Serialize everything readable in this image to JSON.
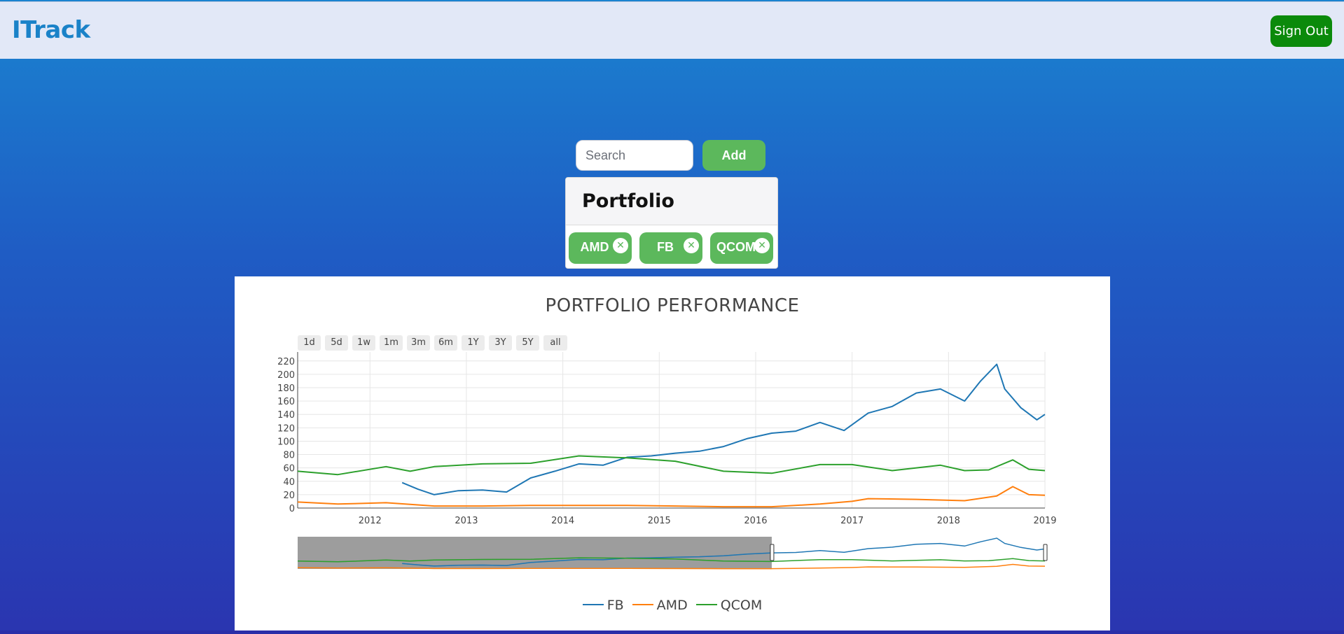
{
  "header": {
    "brand": "ITrack",
    "signout_label": "Sign Out"
  },
  "search": {
    "placeholder": "Search",
    "add_label": "Add"
  },
  "portfolio": {
    "title": "Portfolio",
    "stocks": [
      {
        "symbol": "AMD",
        "remove_icon": "close-circle-icon"
      },
      {
        "symbol": "FB",
        "remove_icon": "close-circle-icon"
      },
      {
        "symbol": "QCOM",
        "remove_icon": "close-circle-icon"
      }
    ]
  },
  "range_buttons": [
    "1d",
    "5d",
    "1w",
    "1m",
    "3m",
    "6m",
    "1Y",
    "3Y",
    "5Y",
    "all"
  ],
  "colors": {
    "FB": "#1f77b4",
    "AMD": "#ff7f0e",
    "QCOM": "#2ca02c",
    "brand": "#1a82c8",
    "signout": "#0b8a0b",
    "accent": "#5cb85c"
  },
  "chart_data": {
    "type": "line",
    "title": "PORTFOLIO PERFORMANCE",
    "xlabel": "",
    "ylabel": "",
    "x_ticks": [
      "2012",
      "2013",
      "2014",
      "2015",
      "2016",
      "2017",
      "2018",
      "2019"
    ],
    "y_ticks": [
      0,
      20,
      40,
      60,
      80,
      100,
      120,
      140,
      160,
      180,
      200,
      220
    ],
    "xlim": [
      "2011-04",
      "2019-01"
    ],
    "ylim": [
      0,
      225
    ],
    "grid": true,
    "legend_placement": "bottom-center",
    "range_slider": true,
    "range_slider_selection": [
      "2011-04",
      "2016-03"
    ],
    "series": [
      {
        "name": "FB",
        "points": [
          [
            "2012-05",
            38
          ],
          [
            "2012-07",
            28
          ],
          [
            "2012-09",
            20
          ],
          [
            "2012-12",
            26
          ],
          [
            "2013-03",
            27
          ],
          [
            "2013-06",
            24
          ],
          [
            "2013-09",
            45
          ],
          [
            "2013-12",
            55
          ],
          [
            "2014-03",
            66
          ],
          [
            "2014-06",
            64
          ],
          [
            "2014-09",
            76
          ],
          [
            "2014-12",
            78
          ],
          [
            "2015-03",
            82
          ],
          [
            "2015-06",
            85
          ],
          [
            "2015-09",
            92
          ],
          [
            "2015-12",
            104
          ],
          [
            "2016-03",
            112
          ],
          [
            "2016-06",
            115
          ],
          [
            "2016-09",
            128
          ],
          [
            "2016-12",
            116
          ],
          [
            "2017-03",
            142
          ],
          [
            "2017-06",
            152
          ],
          [
            "2017-09",
            172
          ],
          [
            "2017-12",
            178
          ],
          [
            "2018-03",
            160
          ],
          [
            "2018-05",
            190
          ],
          [
            "2018-07",
            215
          ],
          [
            "2018-08",
            178
          ],
          [
            "2018-10",
            150
          ],
          [
            "2018-12",
            132
          ],
          [
            "2019-01",
            140
          ]
        ]
      },
      {
        "name": "AMD",
        "points": [
          [
            "2011-04",
            9
          ],
          [
            "2011-09",
            6
          ],
          [
            "2012-03",
            8
          ],
          [
            "2012-09",
            3
          ],
          [
            "2013-03",
            3
          ],
          [
            "2013-09",
            4
          ],
          [
            "2014-03",
            4
          ],
          [
            "2014-09",
            4
          ],
          [
            "2015-03",
            3
          ],
          [
            "2015-09",
            2
          ],
          [
            "2016-03",
            2
          ],
          [
            "2016-09",
            6
          ],
          [
            "2017-01",
            10
          ],
          [
            "2017-03",
            14
          ],
          [
            "2017-09",
            13
          ],
          [
            "2018-03",
            11
          ],
          [
            "2018-07",
            18
          ],
          [
            "2018-09",
            32
          ],
          [
            "2018-11",
            20
          ],
          [
            "2019-01",
            19
          ]
        ]
      },
      {
        "name": "QCOM",
        "points": [
          [
            "2011-04",
            55
          ],
          [
            "2011-09",
            50
          ],
          [
            "2012-03",
            62
          ],
          [
            "2012-06",
            55
          ],
          [
            "2012-09",
            62
          ],
          [
            "2013-03",
            66
          ],
          [
            "2013-09",
            67
          ],
          [
            "2014-03",
            78
          ],
          [
            "2014-09",
            75
          ],
          [
            "2015-03",
            70
          ],
          [
            "2015-09",
            55
          ],
          [
            "2016-03",
            52
          ],
          [
            "2016-09",
            65
          ],
          [
            "2017-01",
            65
          ],
          [
            "2017-06",
            56
          ],
          [
            "2017-12",
            64
          ],
          [
            "2018-03",
            56
          ],
          [
            "2018-06",
            57
          ],
          [
            "2018-09",
            72
          ],
          [
            "2018-11",
            58
          ],
          [
            "2019-01",
            56
          ]
        ]
      }
    ]
  }
}
